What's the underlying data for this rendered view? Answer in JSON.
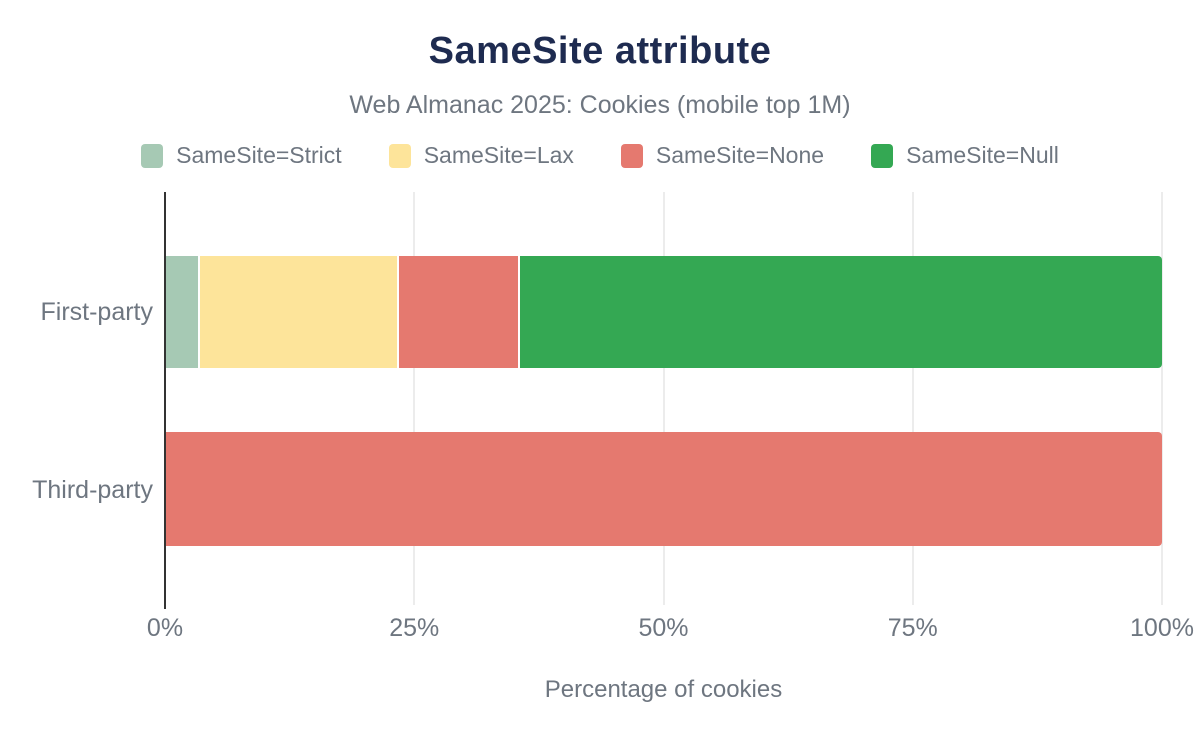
{
  "chart_data": {
    "type": "bar",
    "orientation": "horizontal",
    "stacked": true,
    "title": "SameSite attribute",
    "subtitle": "Web Almanac 2025: Cookies (mobile top 1M)",
    "xlabel": "Percentage of cookies",
    "xlim": [
      0,
      100
    ],
    "xticks": [
      0,
      25,
      50,
      75,
      100
    ],
    "xtick_labels": [
      "0%",
      "25%",
      "50%",
      "75%",
      "100%"
    ],
    "categories": [
      "First-party",
      "Third-party"
    ],
    "series": [
      {
        "name": "SameSite=Strict",
        "color": "#a6c9b4",
        "values": [
          3.3,
          0
        ]
      },
      {
        "name": "SameSite=Lax",
        "color": "#fde49a",
        "values": [
          19.9,
          0
        ]
      },
      {
        "name": "SameSite=None",
        "color": "#e5796f",
        "values": [
          12.0,
          100
        ]
      },
      {
        "name": "SameSite=Null",
        "color": "#34a853",
        "values": [
          64.8,
          0
        ]
      }
    ],
    "legend_position": "top",
    "grid": "vertical"
  },
  "colors": {
    "title": "#1e2b50",
    "text": "#6e7680",
    "axis": "#333333",
    "gridline": "#ececec",
    "background": "#ffffff"
  }
}
